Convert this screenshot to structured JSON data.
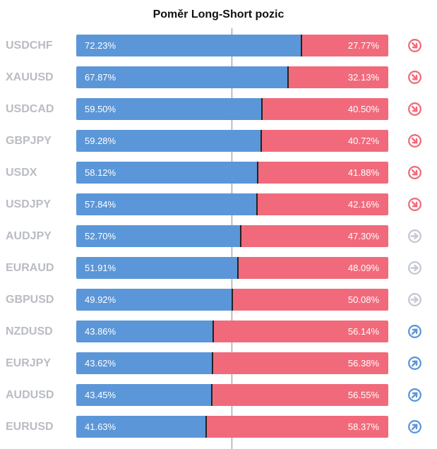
{
  "title": "Poměr Long-Short pozic",
  "colors": {
    "long": "#5b96d8",
    "short": "#f16a7b",
    "neutral": "#c3c8d1"
  },
  "chart_data": {
    "type": "bar",
    "stacked": true,
    "orientation": "horizontal",
    "categories": [
      "USDCHF",
      "XAUUSD",
      "USDCAD",
      "GBPJPY",
      "USDX",
      "USDJPY",
      "AUDJPY",
      "EURAUD",
      "GBPUSD",
      "NZDUSD",
      "EURJPY",
      "AUDUSD",
      "EURUSD"
    ],
    "series": [
      {
        "values": [
          72.23,
          67.87,
          59.5,
          59.28,
          58.12,
          57.84,
          52.7,
          51.91,
          49.92,
          43.86,
          43.62,
          43.45,
          41.63
        ]
      },
      {
        "values": [
          27.77,
          32.13,
          40.5,
          40.72,
          41.88,
          42.16,
          47.3,
          48.09,
          50.08,
          56.14,
          56.38,
          56.55,
          58.37
        ]
      }
    ],
    "rows": [
      {
        "symbol": "USDCHF",
        "long": 72.23,
        "short": 27.77,
        "long_label": "72.23%",
        "short_label": "27.77%",
        "signal": "down",
        "signal_icon": "arrow-down-right-icon"
      },
      {
        "symbol": "XAUUSD",
        "long": 67.87,
        "short": 32.13,
        "long_label": "67.87%",
        "short_label": "32.13%",
        "signal": "down",
        "signal_icon": "arrow-down-right-icon"
      },
      {
        "symbol": "USDCAD",
        "long": 59.5,
        "short": 40.5,
        "long_label": "59.50%",
        "short_label": "40.50%",
        "signal": "down",
        "signal_icon": "arrow-down-right-icon"
      },
      {
        "symbol": "GBPJPY",
        "long": 59.28,
        "short": 40.72,
        "long_label": "59.28%",
        "short_label": "40.72%",
        "signal": "down",
        "signal_icon": "arrow-down-right-icon"
      },
      {
        "symbol": "USDX",
        "long": 58.12,
        "short": 41.88,
        "long_label": "58.12%",
        "short_label": "41.88%",
        "signal": "down",
        "signal_icon": "arrow-down-right-icon"
      },
      {
        "symbol": "USDJPY",
        "long": 57.84,
        "short": 42.16,
        "long_label": "57.84%",
        "short_label": "42.16%",
        "signal": "down",
        "signal_icon": "arrow-down-right-icon"
      },
      {
        "symbol": "AUDJPY",
        "long": 52.7,
        "short": 47.3,
        "long_label": "52.70%",
        "short_label": "47.30%",
        "signal": "neutral",
        "signal_icon": "arrow-right-icon"
      },
      {
        "symbol": "EURAUD",
        "long": 51.91,
        "short": 48.09,
        "long_label": "51.91%",
        "short_label": "48.09%",
        "signal": "neutral",
        "signal_icon": "arrow-right-icon"
      },
      {
        "symbol": "GBPUSD",
        "long": 49.92,
        "short": 50.08,
        "long_label": "49.92%",
        "short_label": "50.08%",
        "signal": "neutral",
        "signal_icon": "arrow-right-icon"
      },
      {
        "symbol": "NZDUSD",
        "long": 43.86,
        "short": 56.14,
        "long_label": "43.86%",
        "short_label": "56.14%",
        "signal": "up",
        "signal_icon": "arrow-up-right-icon"
      },
      {
        "symbol": "EURJPY",
        "long": 43.62,
        "short": 56.38,
        "long_label": "43.62%",
        "short_label": "56.38%",
        "signal": "up",
        "signal_icon": "arrow-up-right-icon"
      },
      {
        "symbol": "AUDUSD",
        "long": 43.45,
        "short": 56.55,
        "long_label": "43.45%",
        "short_label": "56.55%",
        "signal": "up",
        "signal_icon": "arrow-up-right-icon"
      },
      {
        "symbol": "EURUSD",
        "long": 41.63,
        "short": 58.37,
        "long_label": "41.63%",
        "short_label": "58.37%",
        "signal": "up",
        "signal_icon": "arrow-up-right-icon"
      }
    ],
    "xlim": [
      0,
      100
    ],
    "reference_line": 50,
    "grid": false,
    "legend": "none"
  }
}
